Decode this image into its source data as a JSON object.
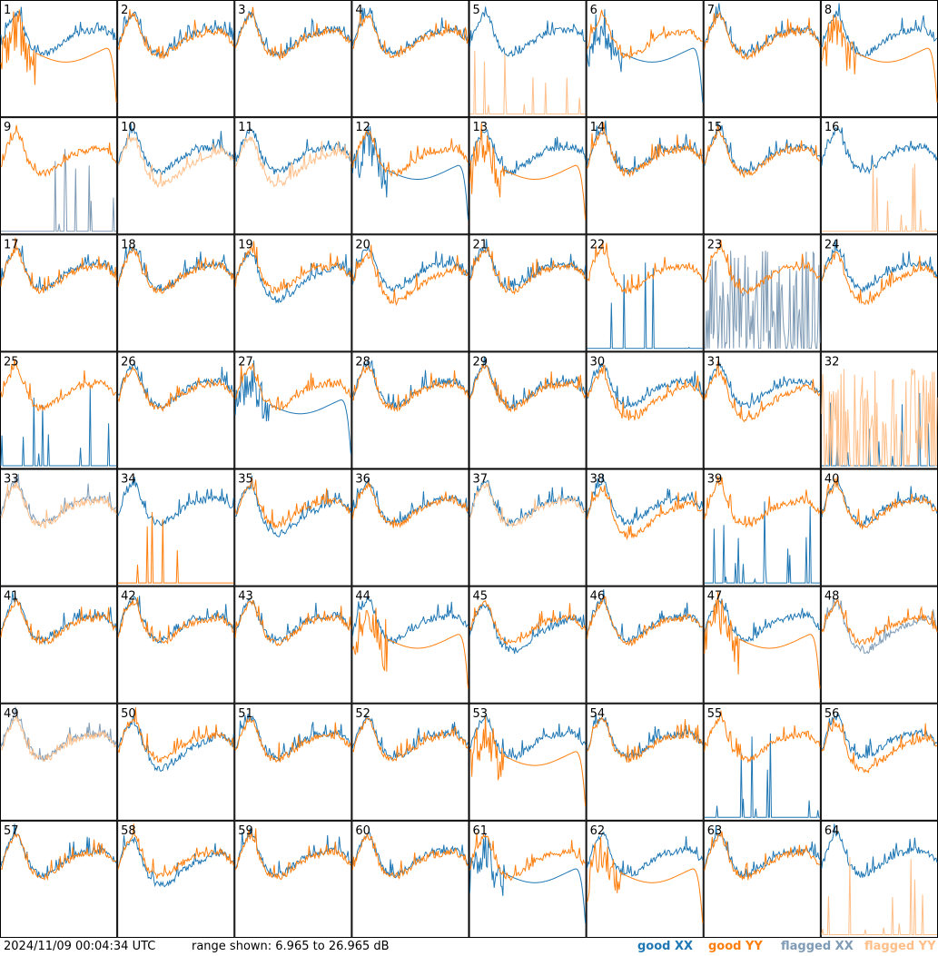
{
  "footer": {
    "timestamp": "2024/11/09 00:04:34 UTC",
    "range_text": "range shown: 6.965 to 26.965 dB"
  },
  "legend": [
    {
      "label": "good XX",
      "color": "#1f77b4"
    },
    {
      "label": "good YY",
      "color": "#ff7f0e"
    },
    {
      "label": "flagged XX",
      "color": "#7f9bb5"
    },
    {
      "label": "flagged YY",
      "color": "#ffbf8a"
    }
  ],
  "chart_data": {
    "type": "line",
    "layout": "small-multiples-8x8",
    "ylim_db": [
      6.965,
      26.965
    ],
    "unit": "dB",
    "panels": [
      {
        "id": "1",
        "xx": "normal",
        "yy": "dropout"
      },
      {
        "id": "2",
        "xx": "normal",
        "yy": "normal"
      },
      {
        "id": "3",
        "xx": "normal",
        "yy": "normal"
      },
      {
        "id": "4",
        "xx": "normal",
        "yy": "normal"
      },
      {
        "id": "5",
        "xx": "normal",
        "yy": "flagged-spikes"
      },
      {
        "id": "6",
        "xx": "dropout",
        "yy": "normal"
      },
      {
        "id": "7",
        "xx": "normal",
        "yy": "normal"
      },
      {
        "id": "8",
        "xx": "normal",
        "yy": "dropout"
      },
      {
        "id": "9",
        "xx": "flagged-spikes",
        "yy": "normal"
      },
      {
        "id": "10",
        "xx": "normal",
        "yy": "flagged-lower"
      },
      {
        "id": "11",
        "xx": "normal",
        "yy": "flagged-lower"
      },
      {
        "id": "12",
        "xx": "dropout",
        "yy": "normal"
      },
      {
        "id": "13",
        "xx": "normal",
        "yy": "dropout"
      },
      {
        "id": "14",
        "xx": "normal",
        "yy": "normal"
      },
      {
        "id": "15",
        "xx": "normal",
        "yy": "normal"
      },
      {
        "id": "16",
        "xx": "normal",
        "yy": "flagged-spikes"
      },
      {
        "id": "17",
        "xx": "normal",
        "yy": "normal"
      },
      {
        "id": "18",
        "xx": "normal",
        "yy": "normal"
      },
      {
        "id": "19",
        "xx": "lower",
        "yy": "normal"
      },
      {
        "id": "20",
        "xx": "normal",
        "yy": "lower"
      },
      {
        "id": "21",
        "xx": "normal",
        "yy": "normal"
      },
      {
        "id": "22",
        "xx": "spikes",
        "yy": "normal"
      },
      {
        "id": "23",
        "xx": "flagged-noise",
        "yy": "normal"
      },
      {
        "id": "24",
        "xx": "normal",
        "yy": "lower"
      },
      {
        "id": "25",
        "xx": "spikes",
        "yy": "normal"
      },
      {
        "id": "26",
        "xx": "normal",
        "yy": "normal"
      },
      {
        "id": "27",
        "xx": "dropout",
        "yy": "normal"
      },
      {
        "id": "28",
        "xx": "normal",
        "yy": "normal"
      },
      {
        "id": "29",
        "xx": "normal",
        "yy": "normal"
      },
      {
        "id": "30",
        "xx": "normal",
        "yy": "lower"
      },
      {
        "id": "31",
        "xx": "normal",
        "yy": "lower"
      },
      {
        "id": "32",
        "xx": "spikes",
        "yy": "flagged-noise"
      },
      {
        "id": "33",
        "xx": "flagged-normal",
        "yy": "flagged-normal"
      },
      {
        "id": "34",
        "xx": "normal",
        "yy": "spikes"
      },
      {
        "id": "35",
        "xx": "lower",
        "yy": "normal"
      },
      {
        "id": "36",
        "xx": "normal",
        "yy": "normal"
      },
      {
        "id": "37",
        "xx": "normal",
        "yy": "flagged-normal"
      },
      {
        "id": "38",
        "xx": "normal",
        "yy": "lower"
      },
      {
        "id": "39",
        "xx": "spikes",
        "yy": "normal"
      },
      {
        "id": "40",
        "xx": "normal",
        "yy": "normal"
      },
      {
        "id": "41",
        "xx": "normal",
        "yy": "normal"
      },
      {
        "id": "42",
        "xx": "normal",
        "yy": "normal"
      },
      {
        "id": "43",
        "xx": "normal",
        "yy": "normal"
      },
      {
        "id": "44",
        "xx": "normal",
        "yy": "dropout"
      },
      {
        "id": "45",
        "xx": "lower",
        "yy": "normal"
      },
      {
        "id": "46",
        "xx": "normal",
        "yy": "normal"
      },
      {
        "id": "47",
        "xx": "normal",
        "yy": "dropout"
      },
      {
        "id": "48",
        "xx": "flagged-lower",
        "yy": "normal"
      },
      {
        "id": "49",
        "xx": "flagged-normal",
        "yy": "flagged-normal"
      },
      {
        "id": "50",
        "xx": "lower",
        "yy": "normal"
      },
      {
        "id": "51",
        "xx": "normal",
        "yy": "normal"
      },
      {
        "id": "52",
        "xx": "normal",
        "yy": "normal"
      },
      {
        "id": "53",
        "xx": "normal",
        "yy": "dropout"
      },
      {
        "id": "54",
        "xx": "normal",
        "yy": "normal"
      },
      {
        "id": "55",
        "xx": "spikes",
        "yy": "normal"
      },
      {
        "id": "56",
        "xx": "normal",
        "yy": "lower"
      },
      {
        "id": "57",
        "xx": "normal",
        "yy": "normal"
      },
      {
        "id": "58",
        "xx": "lower",
        "yy": "normal"
      },
      {
        "id": "59",
        "xx": "normal",
        "yy": "normal"
      },
      {
        "id": "60",
        "xx": "normal",
        "yy": "normal"
      },
      {
        "id": "61",
        "xx": "dropout",
        "yy": "normal"
      },
      {
        "id": "62",
        "xx": "normal",
        "yy": "dropout"
      },
      {
        "id": "63",
        "xx": "normal",
        "yy": "normal"
      },
      {
        "id": "64",
        "xx": "normal",
        "yy": "flagged-spikes"
      }
    ]
  }
}
